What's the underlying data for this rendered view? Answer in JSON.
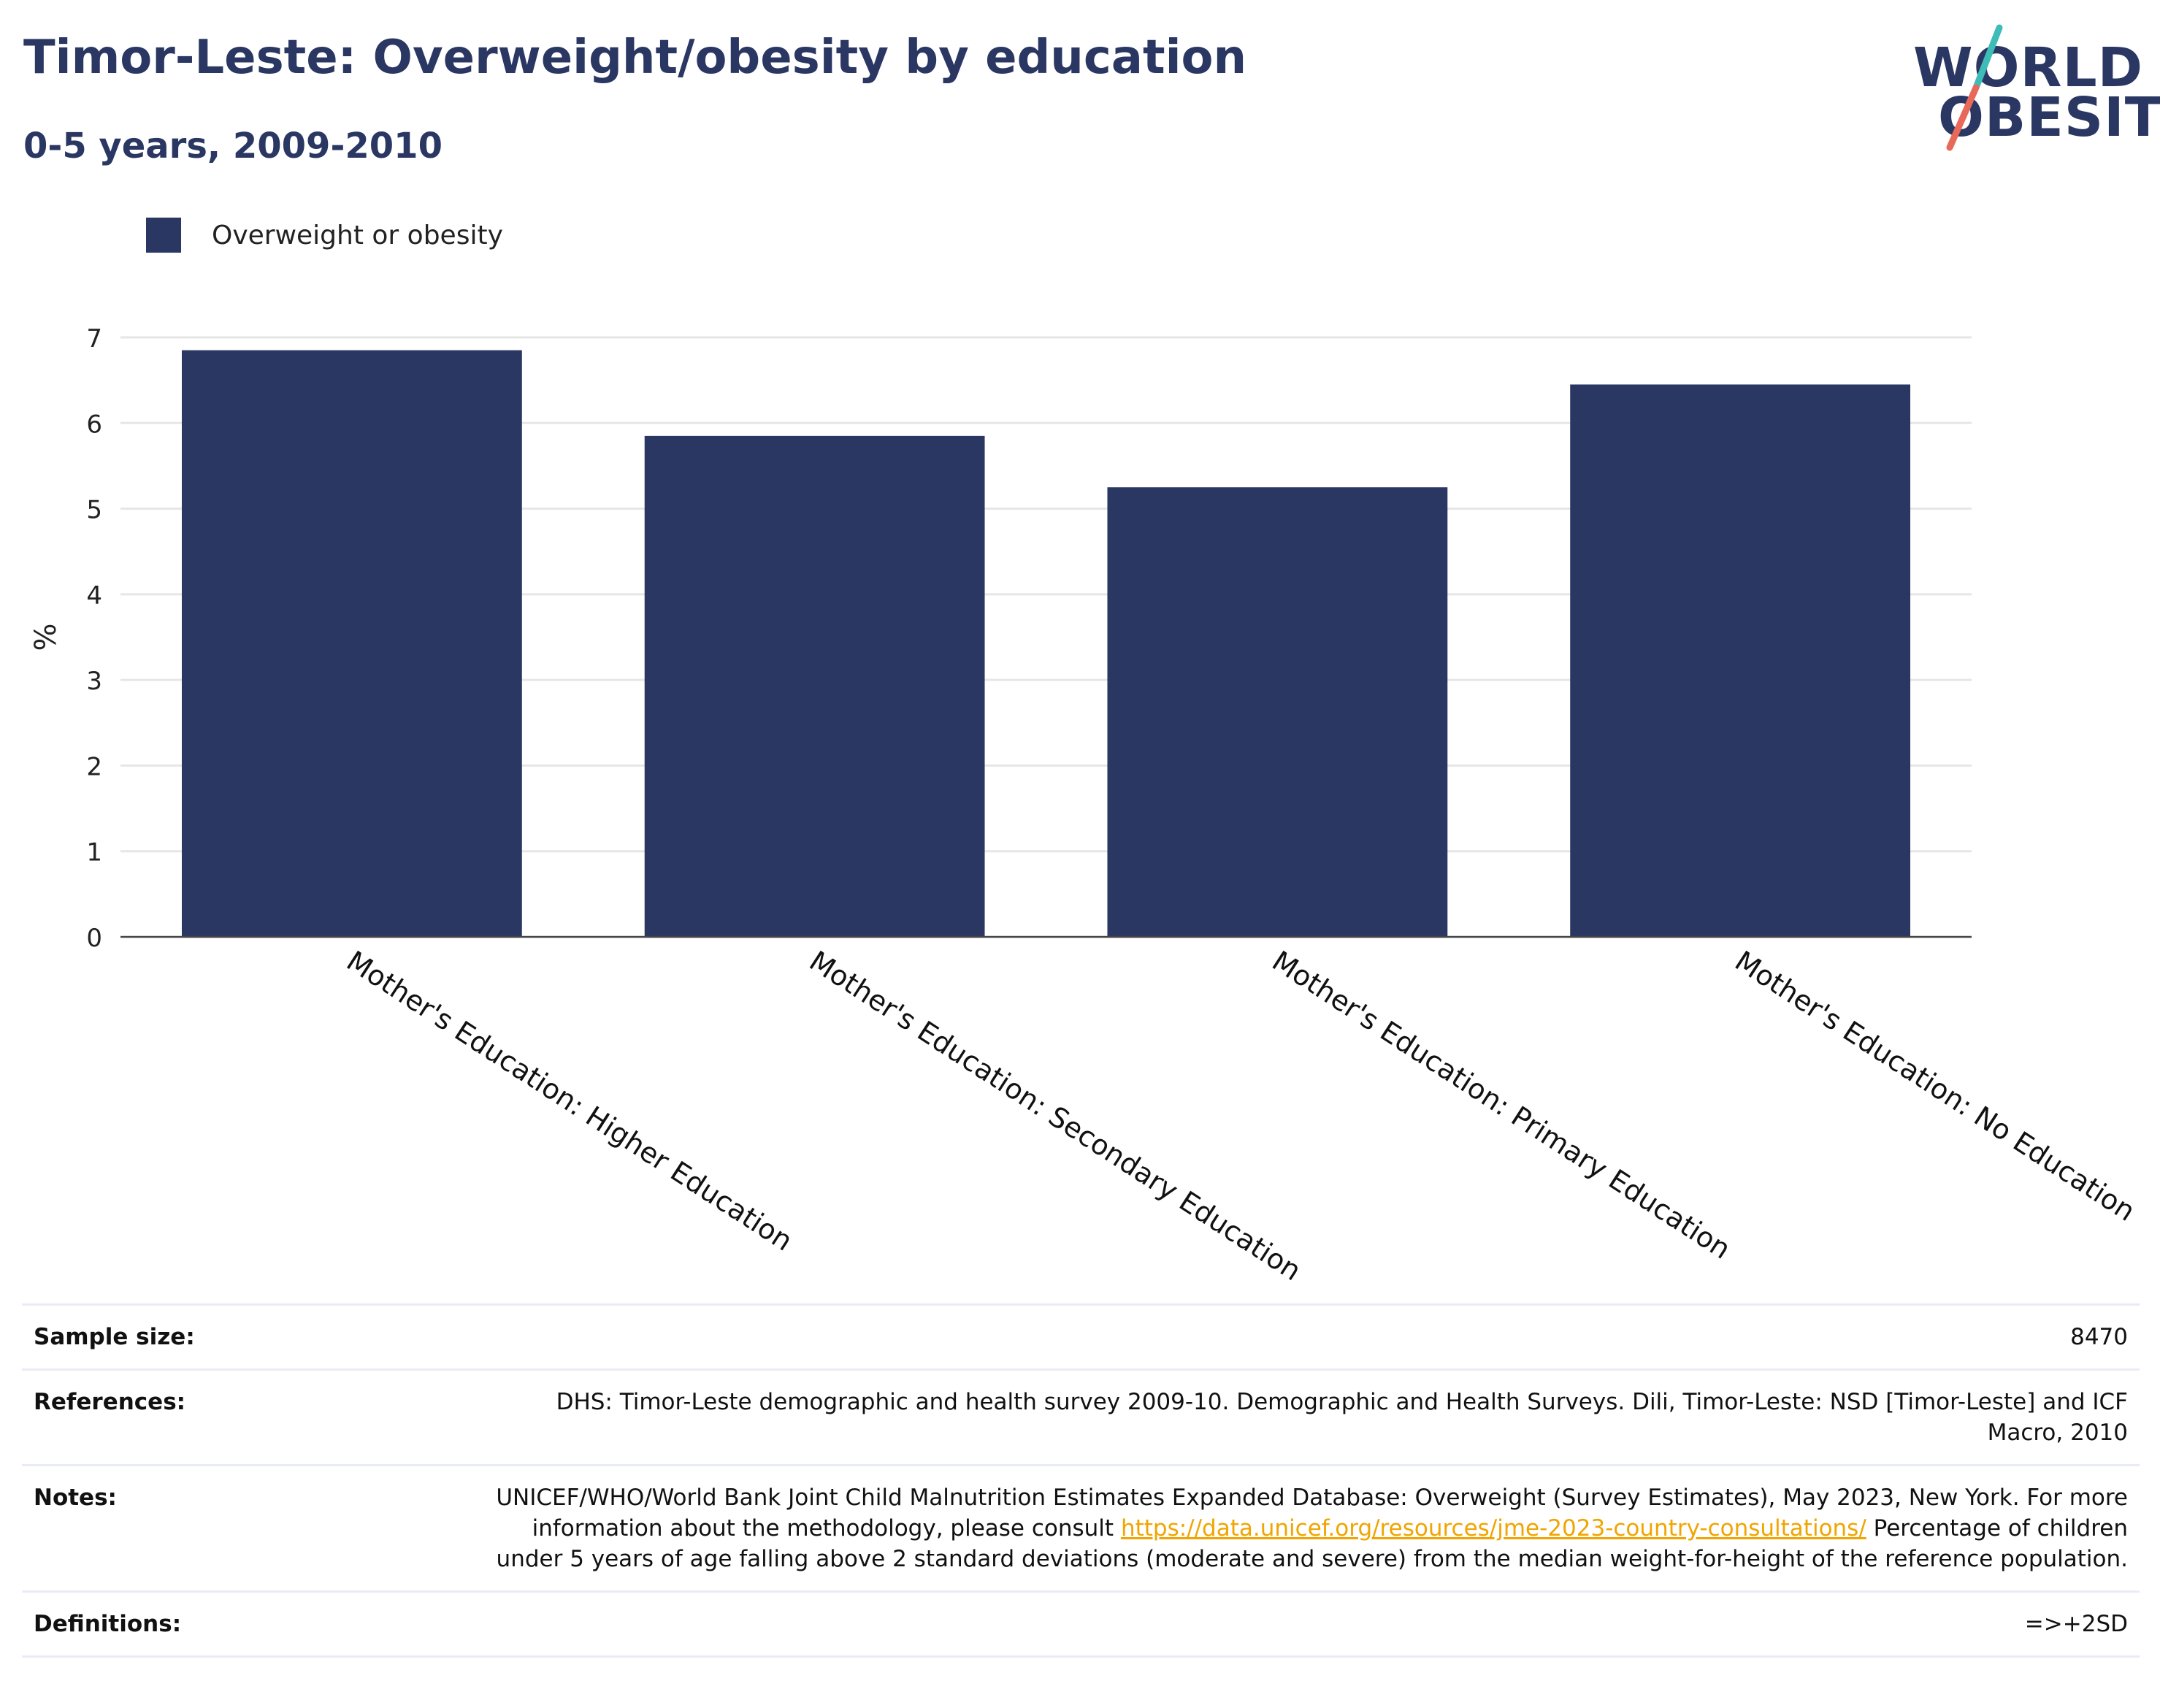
{
  "header": {
    "title": "Timor-Leste: Overweight/obesity by education",
    "subtitle": "0-5 years, 2009-2010"
  },
  "logo": {
    "line1": "WORLD",
    "line2": "OBESITY",
    "text_color": "#2b3763",
    "slash_colors": [
      "#3ebcb8",
      "#e8685a"
    ]
  },
  "chart_data": {
    "type": "bar",
    "categories": [
      "Mother's Education: Higher Education",
      "Mother's Education: Secondary Education",
      "Mother's Education: Primary Education",
      "Mother's Education: No Education"
    ],
    "series": [
      {
        "name": "Overweight or obesity",
        "values": [
          6.85,
          5.85,
          5.25,
          6.45
        ],
        "color": "#2b3763"
      }
    ],
    "ylabel": "%",
    "xlabel": "",
    "ylim": [
      0,
      7
    ],
    "yticks": [
      "0",
      "1",
      "2",
      "3",
      "4",
      "5",
      "6",
      "7"
    ],
    "grid": true,
    "legend_position": "top-left"
  },
  "details": {
    "sample_size": {
      "label": "Sample size:",
      "value": "8470"
    },
    "references": {
      "label": "References:",
      "value": "DHS: Timor-Leste demographic and health survey 2009-10. Demographic and Health Surveys. Dili, Timor-Leste: NSD [Timor-Leste] and ICF Macro, 2010"
    },
    "notes": {
      "label": "Notes:",
      "text_before": "UNICEF/WHO/World Bank Joint Child Malnutrition Estimates Expanded Database: Overweight (Survey Estimates), May 2023, New York. For more information about the methodology, please consult ",
      "link": "https://data.unicef.org/resources/jme-2023-country-consultations/",
      "text_after": " Percentage of children under 5 years of age falling above 2 standard deviations (moderate and severe) from the median weight-for-height of the reference population."
    },
    "definitions": {
      "label": "Definitions:",
      "value": "=>+2SD"
    }
  }
}
